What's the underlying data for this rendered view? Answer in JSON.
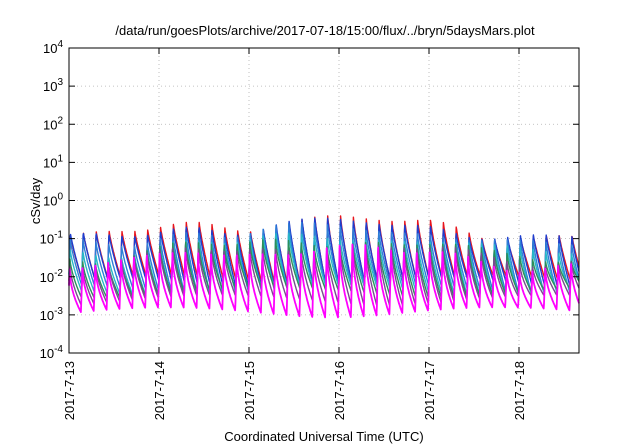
{
  "chart_data": {
    "type": "line",
    "title": "/data/run/goesPlots/archive/2017-07-18/15:00/flux/../bryn/5daysMars.plot",
    "xlabel": "Coordinated Universal Time (UTC)",
    "ylabel": "cSv/day",
    "yscale": "log",
    "ylim": [
      0.0001,
      10000
    ],
    "xlim": [
      "2017-07-13T00:00",
      "2017-07-18T16:00"
    ],
    "grid": true,
    "legend": "none",
    "y_ticks": [
      {
        "base": "10",
        "exp": "-4"
      },
      {
        "base": "10",
        "exp": "-3"
      },
      {
        "base": "10",
        "exp": "-2"
      },
      {
        "base": "10",
        "exp": "-1"
      },
      {
        "base": "10",
        "exp": "0"
      },
      {
        "base": "10",
        "exp": "1"
      },
      {
        "base": "10",
        "exp": "2"
      },
      {
        "base": "10",
        "exp": "3"
      },
      {
        "base": "10",
        "exp": "4"
      }
    ],
    "x_ticks": [
      "2017-7-13",
      "2017-7-14",
      "2017-7-15",
      "2017-7-16",
      "2017-7-17",
      "2017-7-18"
    ],
    "pattern": {
      "cycles_per_day": 7,
      "spike_days": [
        1.35,
        2.3,
        2.85,
        3.3,
        4.1
      ]
    },
    "series": [
      {
        "color": "#e8141c",
        "peak": 0.12,
        "trough": 0.008,
        "sharp": 1.2
      },
      {
        "color": "#1d3ecf",
        "peak": 0.11,
        "trough": 0.007,
        "sharp": 1.2
      },
      {
        "color": "#2e7fd6",
        "peak": 0.075,
        "trough": 0.005,
        "sharp": 1.3
      },
      {
        "color": "#27b7c7",
        "peak": 0.05,
        "trough": 0.0045,
        "sharp": 1.4
      },
      {
        "color": "#2c8f5a",
        "peak": 0.035,
        "trough": 0.004,
        "sharp": 1.5
      },
      {
        "color": "#7a4a8f",
        "peak": 0.03,
        "trough": 0.0025,
        "sharp": 1.6
      },
      {
        "color": "#ff00ff",
        "peak": 0.022,
        "trough": 0.0012,
        "sharp": 2.0
      }
    ]
  }
}
